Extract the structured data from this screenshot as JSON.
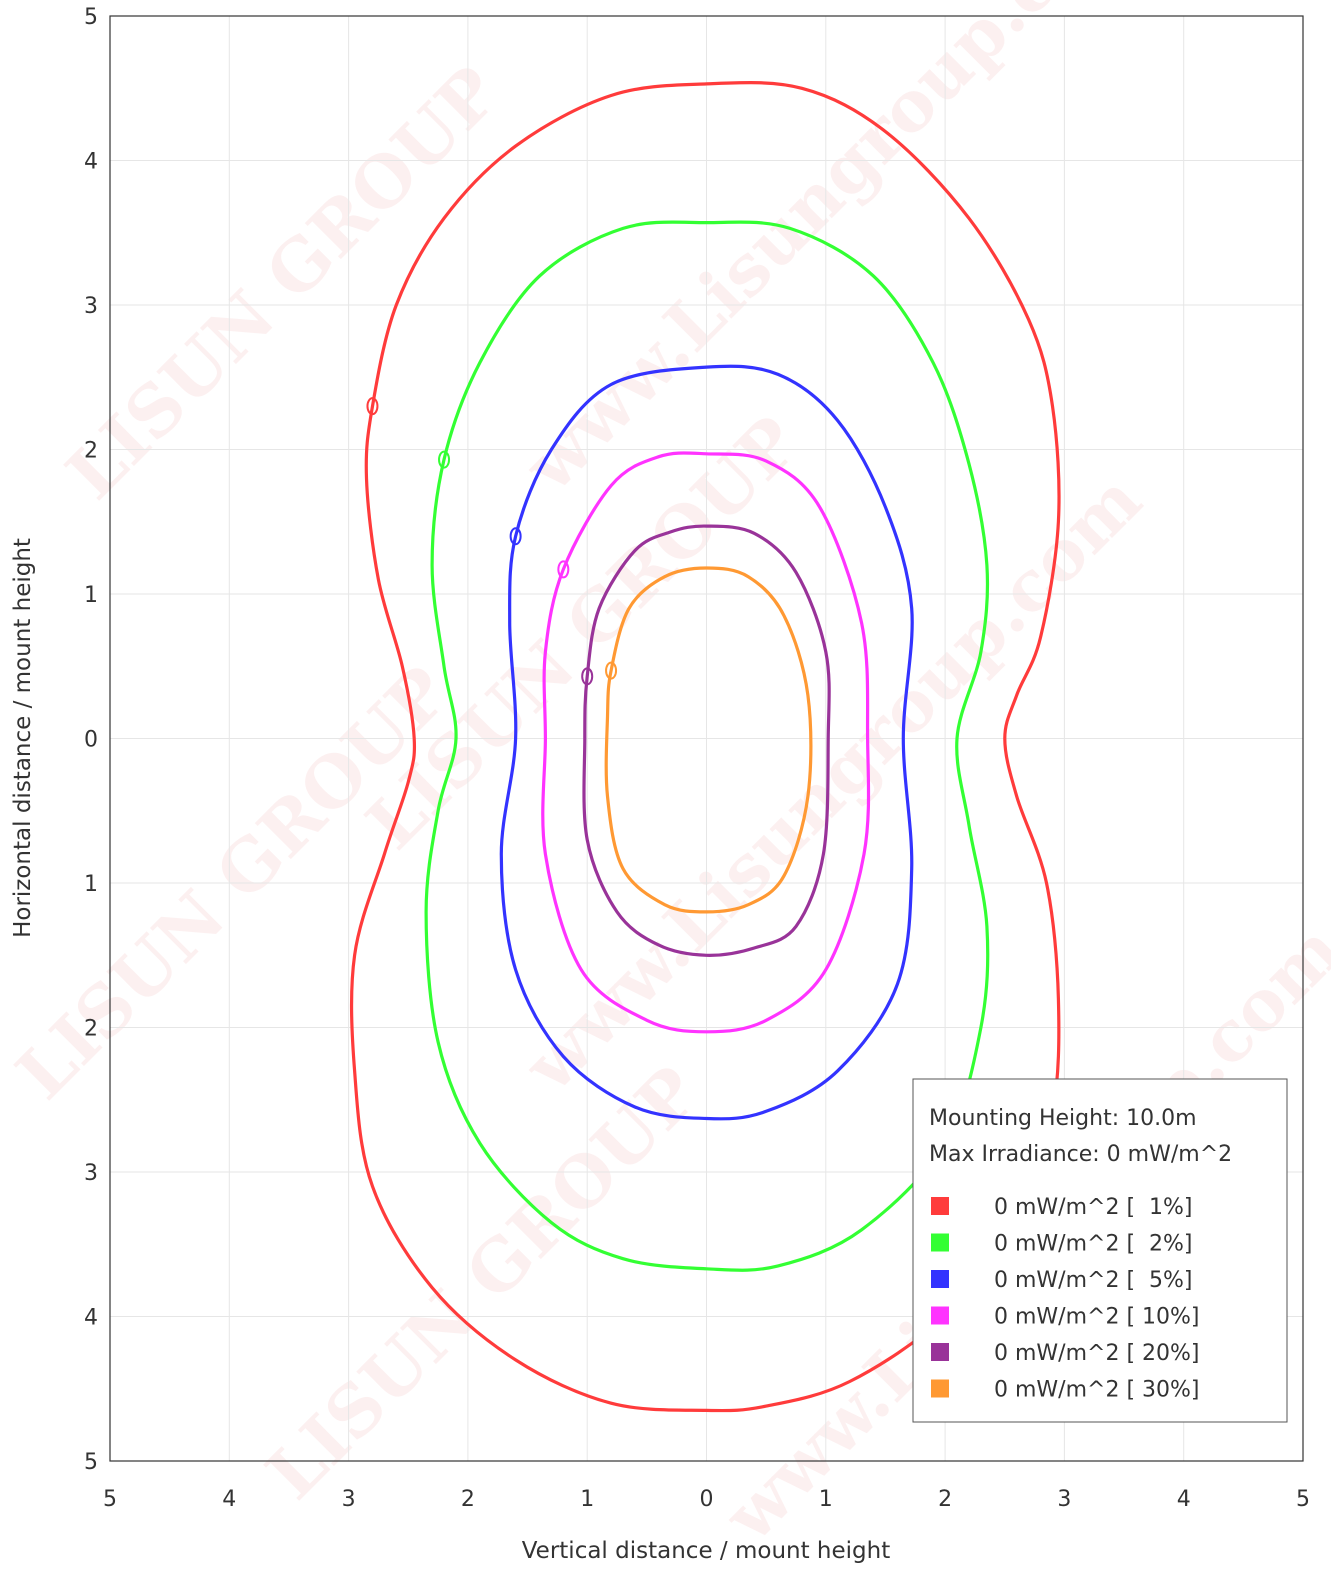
{
  "chart_data": {
    "type": "line",
    "title": "",
    "xlabel": "Vertical distance / mount height",
    "ylabel": "Horizontal distance / mount height",
    "xlim": [
      -5,
      5
    ],
    "ylim": [
      -5,
      5
    ],
    "x_tick_labels": [
      "5",
      "4",
      "3",
      "2",
      "1",
      "0",
      "1",
      "2",
      "3",
      "4",
      "5"
    ],
    "y_tick_labels": [
      "5",
      "4",
      "3",
      "2",
      "1",
      "0",
      "1",
      "2",
      "3",
      "4",
      "5"
    ],
    "grid": true,
    "legend_position": "bottom-right",
    "legend_header": [
      "Mounting Height: 10.0m",
      "Max Irradiance: 0 mW/m^2"
    ],
    "watermark": [
      "LISUN GROUP",
      "www.Lisungroup.com"
    ],
    "series": [
      {
        "name": "0 mW/m^2 [  1%]",
        "color": "#ff3b3b",
        "marker": {
          "x": -2.8,
          "y": 2.3
        },
        "points": [
          [
            0,
            4.53
          ],
          [
            0.8,
            4.5
          ],
          [
            1.5,
            4.2
          ],
          [
            2.2,
            3.6
          ],
          [
            2.7,
            2.9
          ],
          [
            2.9,
            2.3
          ],
          [
            2.95,
            1.5
          ],
          [
            2.8,
            0.7
          ],
          [
            2.6,
            0.3
          ],
          [
            2.5,
            0
          ],
          [
            2.6,
            -0.4
          ],
          [
            2.85,
            -1.0
          ],
          [
            2.95,
            -1.8
          ],
          [
            2.9,
            -2.6
          ],
          [
            2.6,
            -3.4
          ],
          [
            2.0,
            -4.0
          ],
          [
            1.2,
            -4.45
          ],
          [
            0.5,
            -4.62
          ],
          [
            0,
            -4.65
          ],
          [
            -0.8,
            -4.6
          ],
          [
            -1.6,
            -4.3
          ],
          [
            -2.3,
            -3.8
          ],
          [
            -2.8,
            -3.1
          ],
          [
            -2.95,
            -2.3
          ],
          [
            -2.95,
            -1.5
          ],
          [
            -2.7,
            -0.8
          ],
          [
            -2.5,
            -0.3
          ],
          [
            -2.45,
            0
          ],
          [
            -2.55,
            0.5
          ],
          [
            -2.75,
            1.1
          ],
          [
            -2.85,
            1.8
          ],
          [
            -2.8,
            2.3
          ],
          [
            -2.6,
            3.0
          ],
          [
            -2.2,
            3.6
          ],
          [
            -1.6,
            4.1
          ],
          [
            -0.8,
            4.45
          ],
          [
            0,
            4.53
          ]
        ]
      },
      {
        "name": "0 mW/m^2 [  2%]",
        "color": "#33ff33",
        "marker": {
          "x": -2.2,
          "y": 1.93
        },
        "points": [
          [
            0,
            3.57
          ],
          [
            0.7,
            3.53
          ],
          [
            1.4,
            3.2
          ],
          [
            1.9,
            2.6
          ],
          [
            2.2,
            1.9
          ],
          [
            2.35,
            1.2
          ],
          [
            2.3,
            0.6
          ],
          [
            2.1,
            0
          ],
          [
            2.2,
            -0.6
          ],
          [
            2.35,
            -1.3
          ],
          [
            2.3,
            -2.0
          ],
          [
            2.0,
            -2.8
          ],
          [
            1.3,
            -3.4
          ],
          [
            0.6,
            -3.65
          ],
          [
            0,
            -3.67
          ],
          [
            -0.7,
            -3.6
          ],
          [
            -1.3,
            -3.35
          ],
          [
            -1.9,
            -2.8
          ],
          [
            -2.25,
            -2.1
          ],
          [
            -2.35,
            -1.2
          ],
          [
            -2.25,
            -0.5
          ],
          [
            -2.1,
            0
          ],
          [
            -2.2,
            0.5
          ],
          [
            -2.3,
            1.2
          ],
          [
            -2.2,
            1.93
          ],
          [
            -1.9,
            2.6
          ],
          [
            -1.4,
            3.2
          ],
          [
            -0.7,
            3.53
          ],
          [
            0,
            3.57
          ]
        ]
      },
      {
        "name": "0 mW/m^2 [  5%]",
        "color": "#3333ff",
        "marker": {
          "x": -1.6,
          "y": 1.4
        },
        "points": [
          [
            0,
            2.57
          ],
          [
            0.6,
            2.52
          ],
          [
            1.1,
            2.2
          ],
          [
            1.5,
            1.6
          ],
          [
            1.72,
            0.9
          ],
          [
            1.65,
            0
          ],
          [
            1.72,
            -0.9
          ],
          [
            1.6,
            -1.7
          ],
          [
            1.1,
            -2.3
          ],
          [
            0.5,
            -2.58
          ],
          [
            0,
            -2.63
          ],
          [
            -0.6,
            -2.55
          ],
          [
            -1.2,
            -2.2
          ],
          [
            -1.6,
            -1.6
          ],
          [
            -1.72,
            -0.8
          ],
          [
            -1.6,
            0
          ],
          [
            -1.65,
            0.8
          ],
          [
            -1.6,
            1.4
          ],
          [
            -1.3,
            2.0
          ],
          [
            -0.8,
            2.45
          ],
          [
            0,
            2.57
          ]
        ]
      },
      {
        "name": "0 mW/m^2 [ 10%]",
        "color": "#ff33ff",
        "marker": {
          "x": -1.2,
          "y": 1.17
        },
        "points": [
          [
            0,
            1.97
          ],
          [
            0.5,
            1.92
          ],
          [
            0.95,
            1.6
          ],
          [
            1.3,
            0.8
          ],
          [
            1.35,
            0
          ],
          [
            1.32,
            -0.8
          ],
          [
            1.0,
            -1.6
          ],
          [
            0.5,
            -1.95
          ],
          [
            0,
            -2.03
          ],
          [
            -0.5,
            -1.95
          ],
          [
            -1.05,
            -1.6
          ],
          [
            -1.35,
            -0.8
          ],
          [
            -1.35,
            0
          ],
          [
            -1.35,
            0.6
          ],
          [
            -1.2,
            1.17
          ],
          [
            -0.8,
            1.75
          ],
          [
            -0.4,
            1.95
          ],
          [
            0,
            1.97
          ]
        ]
      },
      {
        "name": "0 mW/m^2 [ 20%]",
        "color": "#993399",
        "marker": {
          "x": -1.0,
          "y": 0.43
        },
        "points": [
          [
            0,
            1.47
          ],
          [
            0.4,
            1.42
          ],
          [
            0.75,
            1.15
          ],
          [
            1.0,
            0.6
          ],
          [
            1.02,
            0
          ],
          [
            0.98,
            -0.8
          ],
          [
            0.75,
            -1.3
          ],
          [
            0.4,
            -1.45
          ],
          [
            0,
            -1.5
          ],
          [
            -0.4,
            -1.43
          ],
          [
            -0.75,
            -1.2
          ],
          [
            -1.0,
            -0.7
          ],
          [
            -1.02,
            0
          ],
          [
            -1.0,
            0.43
          ],
          [
            -0.9,
            0.9
          ],
          [
            -0.6,
            1.3
          ],
          [
            -0.3,
            1.43
          ],
          [
            0,
            1.47
          ]
        ]
      },
      {
        "name": "0 mW/m^2 [ 30%]",
        "color": "#ff9933",
        "marker": {
          "x": -0.8,
          "y": 0.47
        },
        "points": [
          [
            0,
            1.18
          ],
          [
            0.35,
            1.12
          ],
          [
            0.65,
            0.85
          ],
          [
            0.85,
            0.3
          ],
          [
            0.85,
            -0.4
          ],
          [
            0.65,
            -0.95
          ],
          [
            0.35,
            -1.15
          ],
          [
            0,
            -1.2
          ],
          [
            -0.35,
            -1.15
          ],
          [
            -0.7,
            -0.9
          ],
          [
            -0.83,
            -0.4
          ],
          [
            -0.83,
            0.15
          ],
          [
            -0.8,
            0.47
          ],
          [
            -0.65,
            0.9
          ],
          [
            -0.35,
            1.12
          ],
          [
            0,
            1.18
          ]
        ]
      }
    ]
  }
}
